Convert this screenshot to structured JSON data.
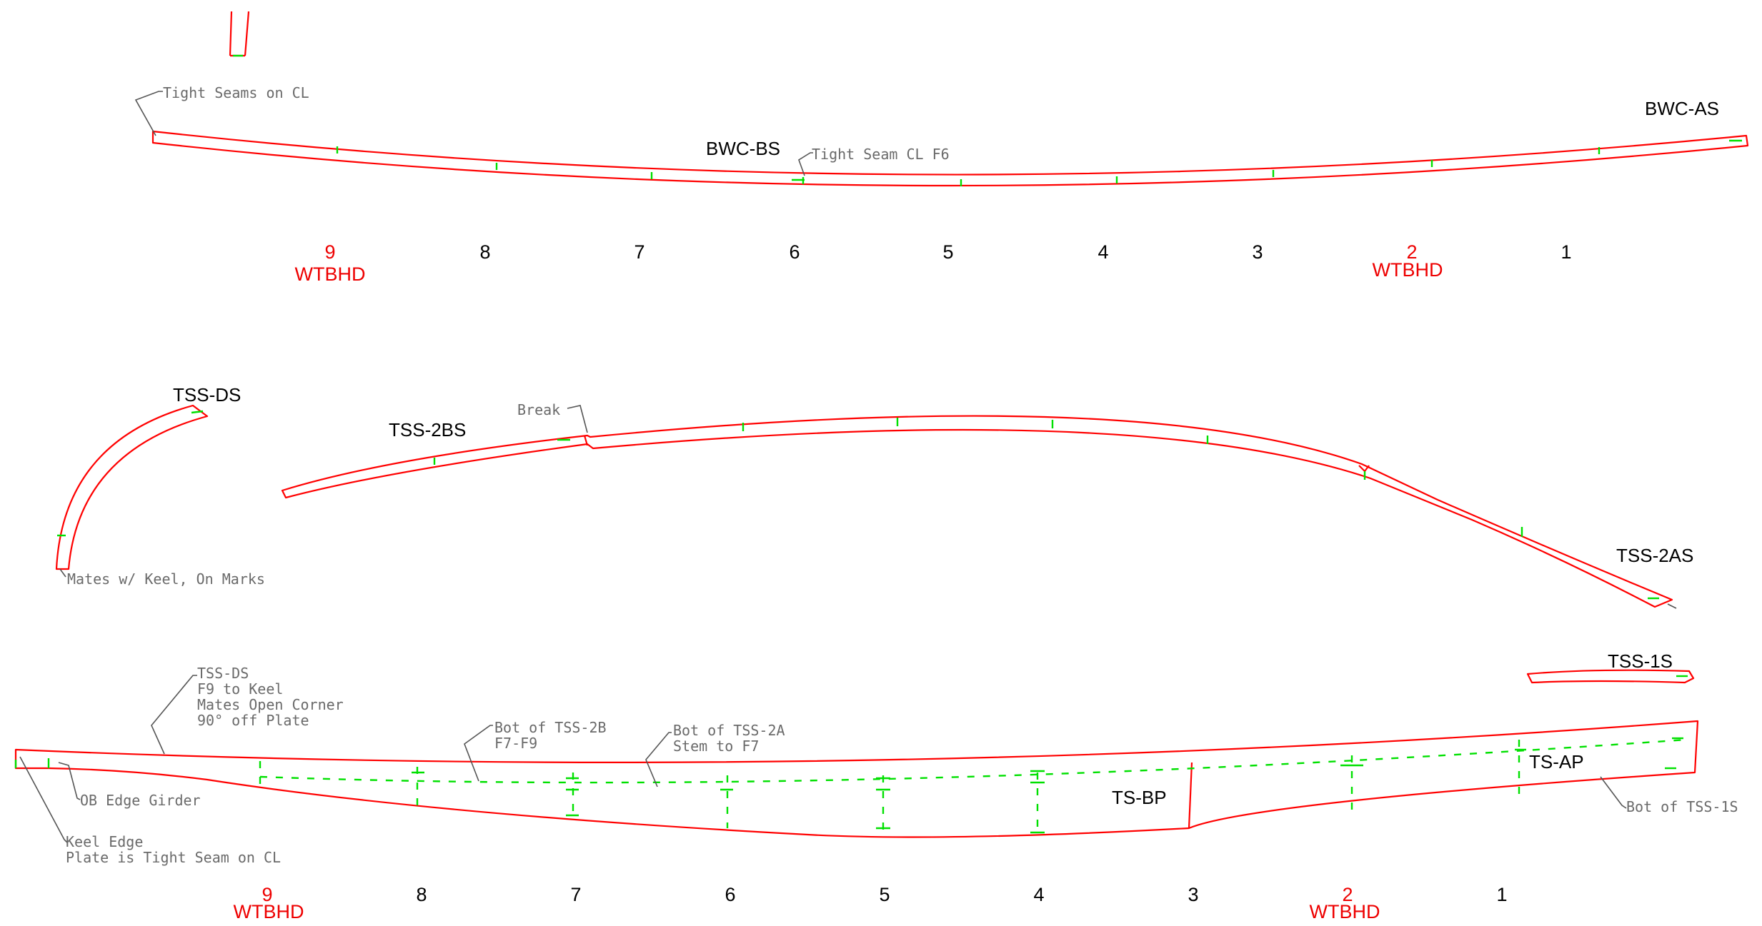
{
  "colors": {
    "outline": "#ff0000",
    "marks": "#00e000",
    "leader": "#555555",
    "watertight": "#ee0000"
  },
  "top": {
    "part_labels": {
      "bwc_bs": "BWC-BS",
      "bwc_as": "BWC-AS"
    },
    "notes": {
      "tight_seams_cl": "Tight Seams on CL",
      "tight_seam_f6": "Tight Seam CL F6"
    }
  },
  "middle": {
    "part_labels": {
      "tss_ds": "TSS-DS",
      "tss_2bs": "TSS-2BS",
      "tss_2as": "TSS-2AS",
      "tss_1s": "TSS-1S"
    },
    "notes": {
      "break": "Break",
      "mates_keel": "Mates w/ Keel, On Marks"
    }
  },
  "bottom": {
    "part_labels": {
      "ts_bp": "TS-BP",
      "ts_ap": "TS-AP"
    },
    "notes": {
      "tss_ds": [
        "TSS-DS",
        "F9 to Keel",
        "Mates Open Corner",
        "90° off Plate"
      ],
      "bot_tss_2b": [
        "Bot of TSS-2B",
        "F7-F9"
      ],
      "bot_tss_2a": [
        "Bot of TSS-2A",
        "Stem to F7"
      ],
      "ob_edge": "OB Edge Girder",
      "keel_edge": [
        "Keel Edge",
        "Plate is Tight Seam on CL"
      ],
      "bot_tss_1s": "Bot of TSS-1S"
    }
  },
  "frames_top": [
    {
      "num": "9",
      "sub": "WTBHD",
      "watertight": true
    },
    {
      "num": "8",
      "sub": "",
      "watertight": false
    },
    {
      "num": "7",
      "sub": "",
      "watertight": false
    },
    {
      "num": "6",
      "sub": "",
      "watertight": false
    },
    {
      "num": "5",
      "sub": "",
      "watertight": false
    },
    {
      "num": "4",
      "sub": "",
      "watertight": false
    },
    {
      "num": "3",
      "sub": "",
      "watertight": false
    },
    {
      "num": "2",
      "sub": "WTBHD",
      "watertight": true
    },
    {
      "num": "1",
      "sub": "",
      "watertight": false
    }
  ],
  "frames_bottom": [
    {
      "num": "9",
      "sub": "WTBHD",
      "watertight": true
    },
    {
      "num": "8",
      "sub": "",
      "watertight": false
    },
    {
      "num": "7",
      "sub": "",
      "watertight": false
    },
    {
      "num": "6",
      "sub": "",
      "watertight": false
    },
    {
      "num": "5",
      "sub": "",
      "watertight": false
    },
    {
      "num": "4",
      "sub": "",
      "watertight": false
    },
    {
      "num": "3",
      "sub": "",
      "watertight": false
    },
    {
      "num": "2",
      "sub": "WTBHD",
      "watertight": true
    },
    {
      "num": "1",
      "sub": "",
      "watertight": false
    }
  ]
}
